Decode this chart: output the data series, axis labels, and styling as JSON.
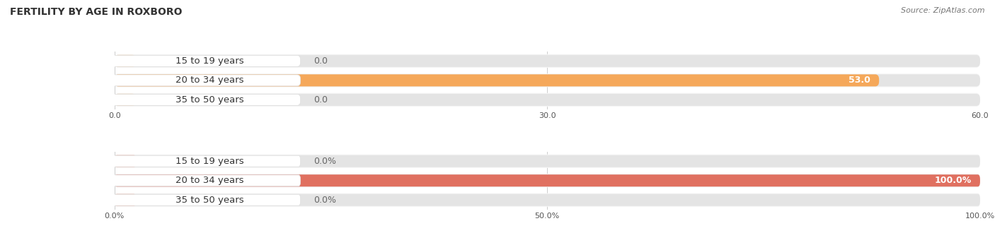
{
  "title": "FERTILITY BY AGE IN ROXBORO",
  "source": "Source: ZipAtlas.com",
  "top_chart": {
    "categories": [
      "15 to 19 years",
      "20 to 34 years",
      "35 to 50 years"
    ],
    "values": [
      0.0,
      53.0,
      0.0
    ],
    "xlim": [
      0,
      60
    ],
    "xticks": [
      0.0,
      30.0,
      60.0
    ],
    "xtick_labels": [
      "0.0",
      "30.0",
      "60.0"
    ],
    "bar_color": "#F5A85A",
    "bar_color_small": "#F2C99A",
    "bg_color": "#EFEFEF",
    "bar_bg_color": "#E4E4E4",
    "row_bg_color": "#F5F5F5"
  },
  "bottom_chart": {
    "categories": [
      "15 to 19 years",
      "20 to 34 years",
      "35 to 50 years"
    ],
    "values": [
      0.0,
      100.0,
      0.0
    ],
    "xlim": [
      0,
      100
    ],
    "xticks": [
      0.0,
      50.0,
      100.0
    ],
    "xtick_labels": [
      "0.0%",
      "50.0%",
      "100.0%"
    ],
    "bar_color": "#E07060",
    "bar_color_small": "#F0A898",
    "bg_color": "#EFEFEF",
    "bar_bg_color": "#E4E4E4",
    "row_bg_color": "#F5F5F5"
  },
  "label_fontsize": 9,
  "title_fontsize": 10,
  "source_fontsize": 8,
  "category_fontsize": 9.5
}
